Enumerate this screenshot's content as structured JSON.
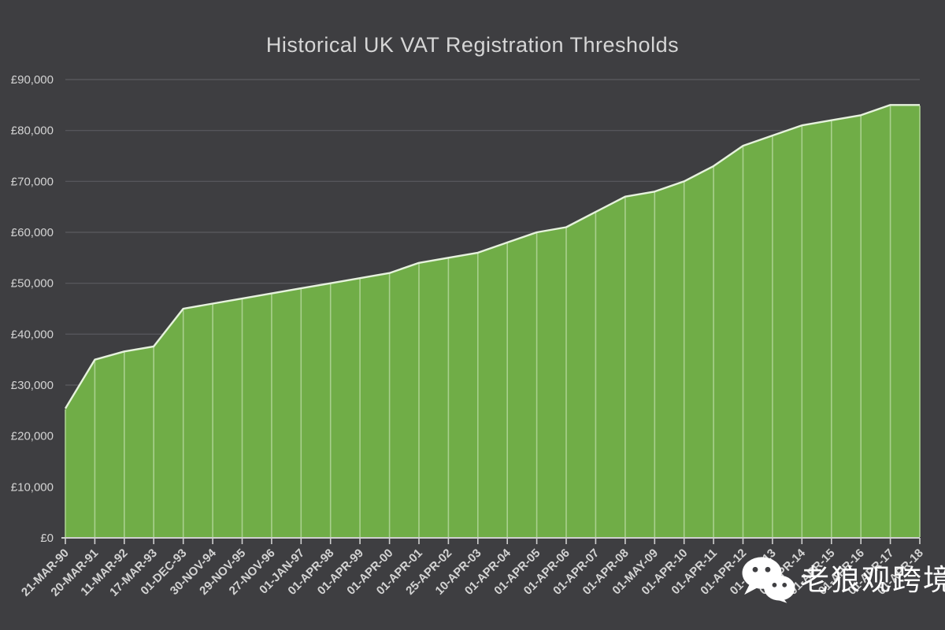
{
  "chart_data": {
    "type": "area",
    "title": "Historical UK VAT Registration Thresholds",
    "categories": [
      "21-MAR-90",
      "20-MAR-91",
      "11-MAR-92",
      "17-MAR-93",
      "01-DEC-93",
      "30-NOV-94",
      "29-NOV-95",
      "27-NOV-96",
      "01-JAN-97",
      "01-APR-98",
      "01-APR-99",
      "01-APR-00",
      "01-APR-01",
      "25-APR-02",
      "10-APR-03",
      "01-APR-04",
      "01-APR-05",
      "01-APR-06",
      "01-APR-07",
      "01-APR-08",
      "01-MAY-09",
      "01-APR-10",
      "01-APR-11",
      "01-APR-12",
      "01-APR-13",
      "01-APR-14",
      "01-APR-15",
      "01-APR-16",
      "01-APR-17",
      "01-APR-18"
    ],
    "values": [
      25400,
      35000,
      36600,
      37600,
      45000,
      46000,
      47000,
      48000,
      49000,
      50000,
      51000,
      52000,
      54000,
      55000,
      56000,
      58000,
      60000,
      61000,
      64000,
      67000,
      68000,
      70000,
      73000,
      77000,
      79000,
      81000,
      82000,
      83000,
      85000,
      85000
    ],
    "xlabel": "",
    "ylabel": "",
    "ylim": [
      0,
      90000
    ],
    "ytick_step": 10000,
    "ytick_labels": [
      "£0",
      "£10,000",
      "£20,000",
      "£30,000",
      "£40,000",
      "£50,000",
      "£60,000",
      "£70,000",
      "£80,000",
      "£90,000"
    ],
    "grid": true,
    "legend_position": "none",
    "colors": {
      "background": "#3e3e41",
      "area_fill": "#70ad47",
      "drop_line": "#a9d08e",
      "top_line": "#e6f2dd",
      "gridline": "#56565b",
      "axis_line": "#cfcfcf",
      "label_text": "#d3d3d3",
      "title_text": "#d6d6d6"
    }
  },
  "watermark": {
    "text": "老狼观跨境",
    "icon": "wechat-icon",
    "color": "#ffffff"
  }
}
